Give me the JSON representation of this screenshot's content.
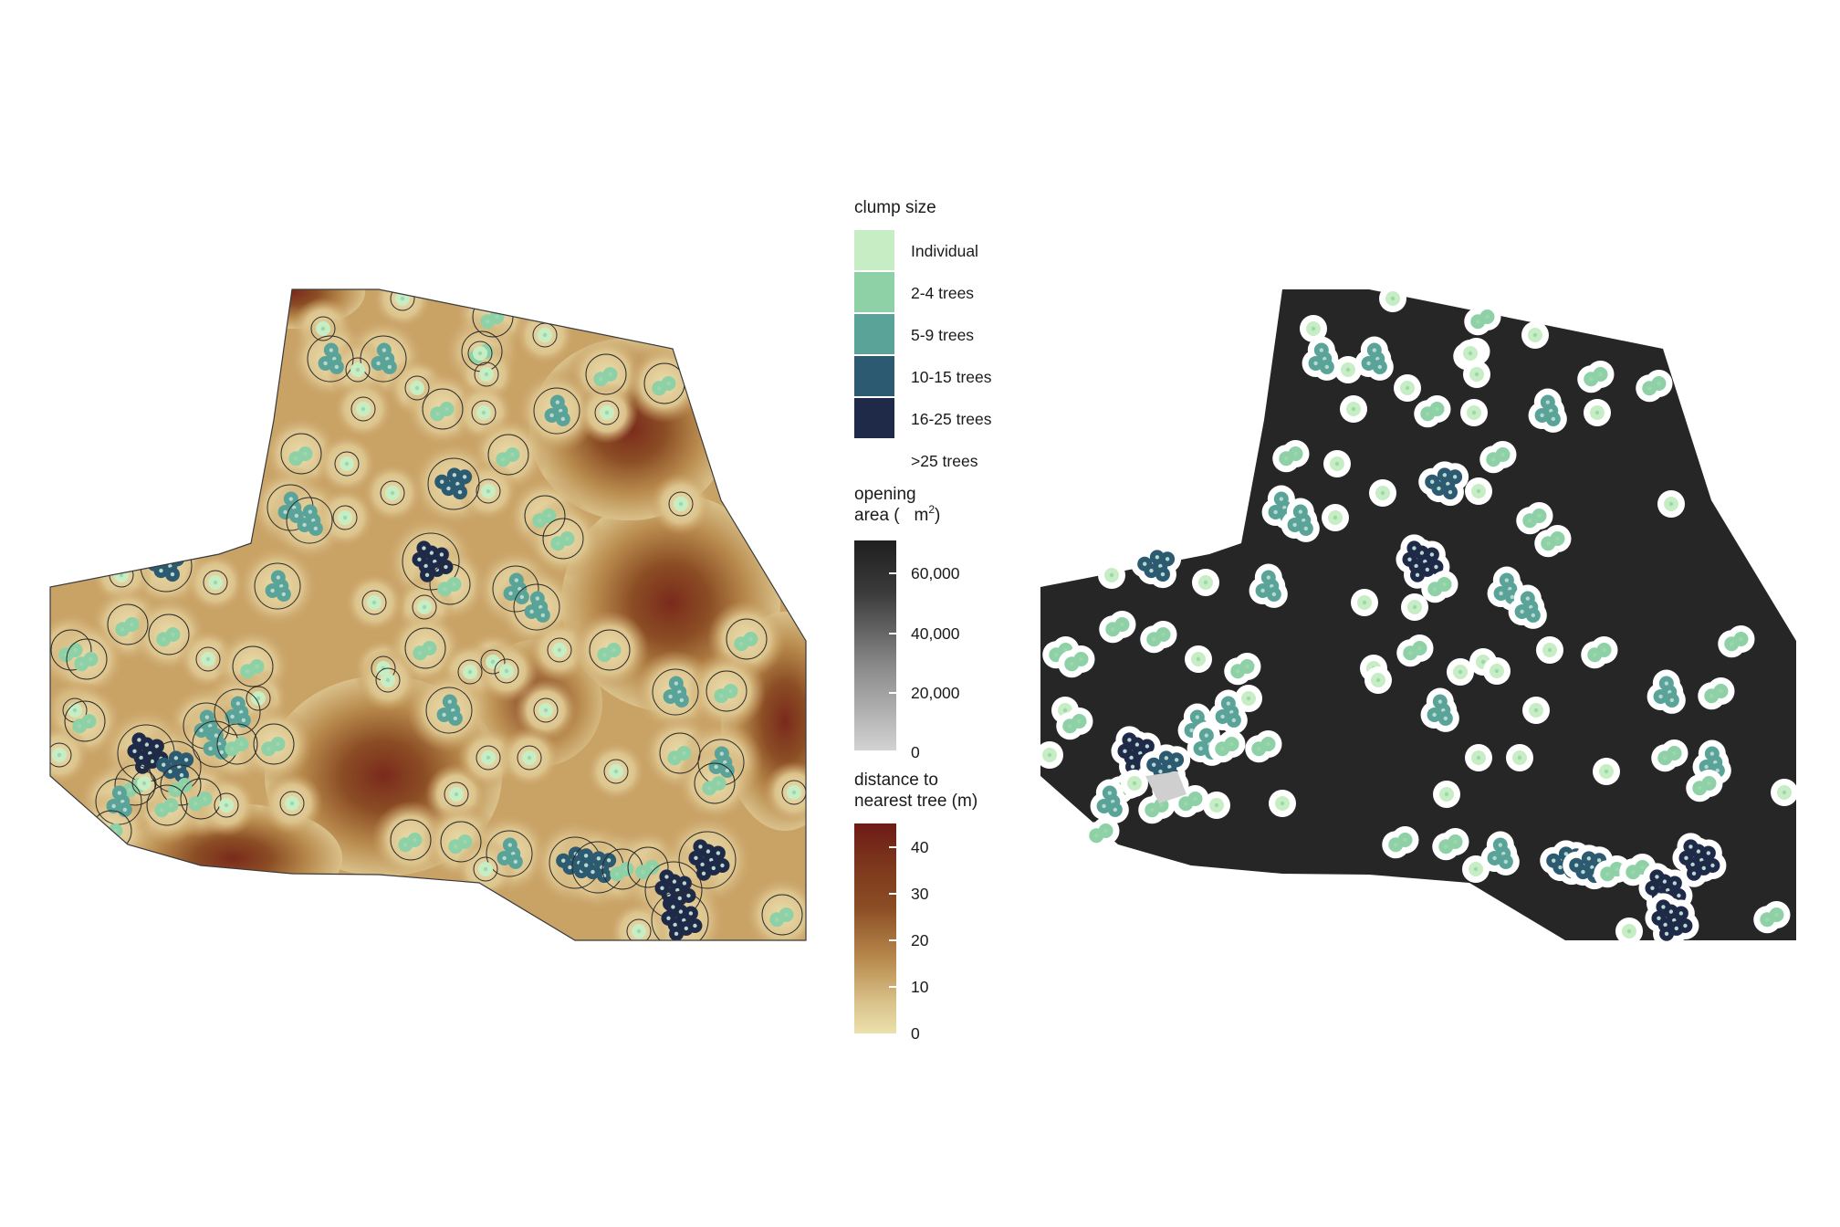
{
  "legend": {
    "clump_size": {
      "title": "clump size",
      "items": [
        {
          "label": "Individual",
          "color": "#c6edc3"
        },
        {
          "label": "2-4 trees",
          "color": "#8ed1a6"
        },
        {
          "label": "5-9 trees",
          "color": "#5aa398"
        },
        {
          "label": "10-15 trees",
          "color": "#2c5a70"
        },
        {
          "label": "16-25 trees",
          "color": "#1e2a48"
        },
        {
          "label": ">25 trees",
          "color": "#ffffff"
        }
      ]
    },
    "opening_area": {
      "title_line1": "opening",
      "title_line2_prefix": "area (",
      "title_unit": "m",
      "title_sup": "2",
      "title_close": ")",
      "ticks": [
        "60,000",
        "40,000",
        "20,000",
        "0"
      ],
      "tick_values": [
        60000,
        40000,
        20000,
        0
      ],
      "range": [
        0,
        70000
      ],
      "colors": [
        "#1f1f1f",
        "#d2d2d2"
      ]
    },
    "distance": {
      "title_line1": "distance to",
      "title_line2": "nearest tree (m)",
      "ticks": [
        "40",
        "30",
        "20",
        "10",
        "0"
      ],
      "tick_values": [
        40,
        30,
        20,
        10,
        0
      ],
      "range": [
        0,
        45
      ],
      "colors": [
        "#6e1b16",
        "#8b4d24",
        "#b98b4e",
        "#e6d6a0"
      ]
    }
  },
  "maps": {
    "left_panel": "distance to nearest tree",
    "right_panel": "opening area",
    "boundary_fill_right": "#262626",
    "halo_color": "#ffffff"
  }
}
